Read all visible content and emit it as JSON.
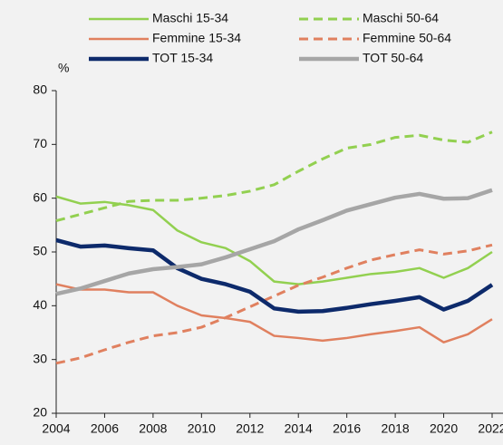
{
  "chart_data": {
    "type": "line",
    "y_label": "%",
    "x": [
      2004,
      2005,
      2006,
      2007,
      2008,
      2009,
      2010,
      2011,
      2012,
      2013,
      2014,
      2015,
      2016,
      2017,
      2018,
      2019,
      2020,
      2021,
      2022
    ],
    "xlim": [
      2004,
      2022
    ],
    "xticks": [
      2004,
      2006,
      2008,
      2010,
      2012,
      2014,
      2016,
      2018,
      2020,
      2022
    ],
    "ylim": [
      20,
      80
    ],
    "yticks": [
      20,
      30,
      40,
      50,
      60,
      70,
      80
    ],
    "series": [
      {
        "name": "Maschi 15-34",
        "color": "#92d050",
        "dashed": false,
        "width": 2.5,
        "values": [
          60.3,
          59,
          59.3,
          58.7,
          57.8,
          54,
          51.8,
          50.7,
          48.3,
          44.5,
          44,
          44.5,
          45.2,
          45.9,
          46.3,
          47,
          45.2,
          47,
          50
        ]
      },
      {
        "name": "Maschi 50-64",
        "color": "#92d050",
        "dashed": true,
        "width": 3,
        "values": [
          55.8,
          57,
          58.2,
          59.4,
          59.6,
          59.6,
          60,
          60.5,
          61.3,
          62.5,
          65,
          67.3,
          69.3,
          70,
          71.3,
          71.7,
          70.8,
          70.4,
          72.3
        ]
      },
      {
        "name": "Femmine 15-34",
        "color": "#e0805f",
        "dashed": false,
        "width": 2.5,
        "values": [
          44,
          43,
          43,
          42.5,
          42.5,
          40,
          38.2,
          37.7,
          37,
          34.4,
          34,
          33.5,
          34,
          34.7,
          35.3,
          36,
          33.2,
          34.7,
          37.5
        ]
      },
      {
        "name": "Femmine 50-64",
        "color": "#e0805f",
        "dashed": true,
        "width": 3,
        "values": [
          29.3,
          30.3,
          31.8,
          33.2,
          34.4,
          35,
          36,
          37.8,
          39.8,
          41.8,
          43.8,
          45.3,
          47,
          48.5,
          49.5,
          50.4,
          49.6,
          50.2,
          51.3
        ]
      },
      {
        "name": "TOT 15-34",
        "color": "#0d2a6b",
        "dashed": false,
        "width": 4.5,
        "values": [
          52.2,
          51,
          51.2,
          50.7,
          50.3,
          47,
          45,
          44,
          42.6,
          39.5,
          38.9,
          39,
          39.6,
          40.3,
          40.9,
          41.6,
          39.3,
          40.9,
          43.9
        ]
      },
      {
        "name": "TOT 50-64",
        "color": "#a6a6a6",
        "dashed": false,
        "width": 4.5,
        "values": [
          42.2,
          43.2,
          44.6,
          46,
          46.8,
          47.2,
          47.7,
          49,
          50.5,
          52,
          54.2,
          55.9,
          57.7,
          58.9,
          60.1,
          60.8,
          59.9,
          60,
          61.5
        ]
      }
    ]
  }
}
